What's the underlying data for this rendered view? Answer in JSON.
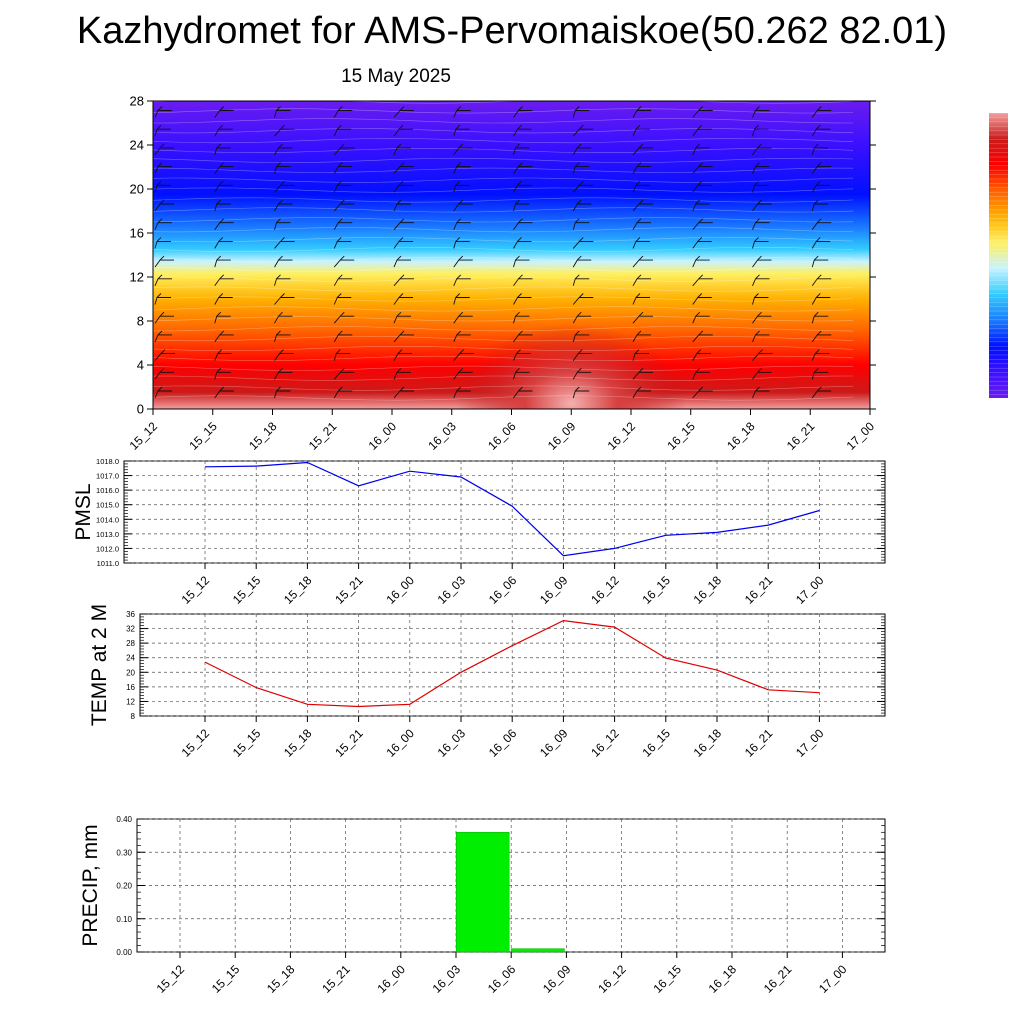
{
  "title": "Kazhydromet for AMS-Pervomaiskoe(50.262 82.01)",
  "subtitle": "15 May 2025",
  "colors": {
    "pmsl_line": "#0000ee",
    "temp_line": "#e00000",
    "precip_bar": "#00ee00",
    "grid": "#555555"
  },
  "chart_data": [
    {
      "type": "heatmap",
      "x_tick_labels": [
        "15_12",
        "15_15",
        "15_18",
        "15_21",
        "16_00",
        "16_03",
        "16_06",
        "16_09",
        "16_12",
        "16_15",
        "16_18",
        "16_21",
        "17_00"
      ],
      "y_tick_labels": [
        "0",
        "4",
        "8",
        "12",
        "16",
        "20",
        "24",
        "28"
      ],
      "ylim": [
        0,
        28
      ],
      "colormap": [
        "#6a1cf0",
        "#3a10ff",
        "#0010ff",
        "#1a7cff",
        "#33ccff",
        "#c8f2ff",
        "#fff060",
        "#ffb000",
        "#ff6000",
        "#ff0000",
        "#cc1a1a",
        "#f0a0a0"
      ],
      "overlay": "wind barbs"
    },
    {
      "type": "line",
      "ylabel": "PMSL",
      "x_tick_labels": [
        "15_12",
        "15_15",
        "15_18",
        "15_21",
        "16_00",
        "16_03",
        "16_06",
        "16_09",
        "16_12",
        "16_15",
        "16_18",
        "16_21",
        "17_00"
      ],
      "y_tick_labels": [
        "1011.0",
        "1012.0",
        "1013.0",
        "1014.0",
        "1015.0",
        "1016.0",
        "1017.0",
        "1018.0"
      ],
      "ylim": [
        1011.0,
        1018.0
      ],
      "series": [
        {
          "values": [
            1017.6,
            1017.65,
            1017.9,
            1016.3,
            1017.3,
            1016.9,
            1014.9,
            1011.5,
            1012.0,
            1012.9,
            1013.1,
            1013.6,
            1014.6
          ]
        }
      ],
      "grid": true
    },
    {
      "type": "line",
      "ylabel": "TEMP at 2 M",
      "x_tick_labels": [
        "15_12",
        "15_15",
        "15_18",
        "15_21",
        "16_00",
        "16_03",
        "16_06",
        "16_09",
        "16_12",
        "16_15",
        "16_18",
        "16_21",
        "17_00"
      ],
      "y_tick_labels": [
        "8",
        "12",
        "16",
        "20",
        "24",
        "28",
        "32",
        "36"
      ],
      "ylim": [
        8,
        36
      ],
      "series": [
        {
          "values": [
            22.8,
            15.8,
            11.2,
            10.6,
            11.2,
            20.0,
            27.3,
            34.2,
            32.4,
            23.9,
            20.6,
            15.2,
            14.4
          ]
        }
      ],
      "grid": true
    },
    {
      "type": "bar",
      "ylabel": "PRECIP, mm",
      "x_tick_labels": [
        "15_12",
        "15_15",
        "15_18",
        "15_21",
        "16_00",
        "16_03",
        "16_06",
        "16_09",
        "16_12",
        "16_15",
        "16_18",
        "16_21",
        "17_00"
      ],
      "y_tick_labels": [
        "0.00",
        "0.10",
        "0.20",
        "0.30",
        "0.40"
      ],
      "ylim": [
        0,
        0.4
      ],
      "values": [
        0,
        0,
        0,
        0,
        0,
        0,
        0.36,
        0.01,
        0,
        0,
        0,
        0,
        0
      ],
      "grid": true
    }
  ]
}
